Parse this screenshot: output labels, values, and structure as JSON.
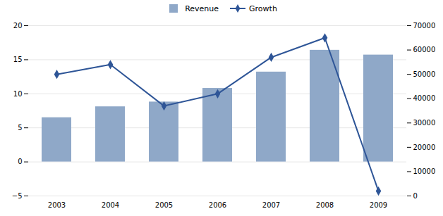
{
  "chart_data": {
    "type": "bar",
    "categories": [
      "2003",
      "2004",
      "2005",
      "2006",
      "2007",
      "2008",
      "2009"
    ],
    "series": [
      {
        "name": "Revenue",
        "type": "bar",
        "color": "#8fa8c8",
        "values": [
          6.5,
          8.1,
          8.8,
          10.8,
          13.2,
          16.4,
          15.7
        ]
      },
      {
        "name": "Growth",
        "type": "line",
        "color": "#2e5597",
        "marker": "diamond",
        "axis": "y2",
        "values": [
          50000,
          54000,
          37000,
          42000,
          57000,
          65000,
          2000
        ]
      }
    ],
    "ylim": [
      -5,
      20
    ],
    "yticks": [
      -5,
      0,
      5,
      10,
      15,
      20
    ],
    "y2lim": [
      0,
      70000
    ],
    "y2ticks": [
      0,
      10000,
      20000,
      30000,
      40000,
      50000,
      60000,
      70000
    ],
    "grid": true,
    "legend": "top"
  }
}
